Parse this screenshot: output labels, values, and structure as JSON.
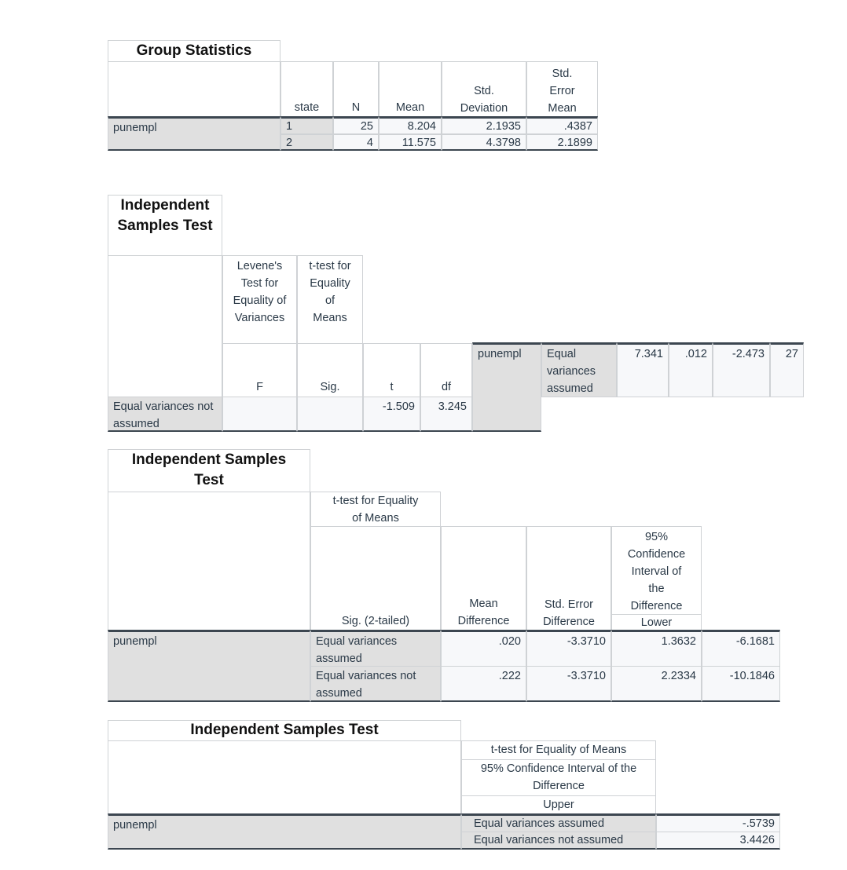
{
  "group_statistics": {
    "title": "Group Statistics",
    "headers": [
      "state",
      "N",
      "Mean",
      "Std. Deviation",
      "Std. Error Mean"
    ],
    "row_label": "punempl",
    "rows": [
      [
        "1",
        "25",
        "8.204",
        "2.1935",
        ".4387"
      ],
      [
        "2",
        "4",
        "11.575",
        "4.3798",
        "2.1899"
      ]
    ]
  },
  "indep_test_1": {
    "title": "Independent Samples Test",
    "levene_header": "Levene's Test for Equality of Variances",
    "ttest_header": "t-test for Equality of Means",
    "col_F": "F",
    "col_sig": "Sig.",
    "col_t": "t",
    "col_df": "df",
    "var_label": "punempl",
    "row_assumed": {
      "label": "Equal variances assumed",
      "F": "7.341",
      "sig": ".012",
      "t": "-2.473",
      "df": "27"
    },
    "row_not_assumed": {
      "label": "Equal variances not assumed",
      "t": "-1.509",
      "df": "3.245"
    }
  },
  "indep_test_2": {
    "title": "Independent Samples Test",
    "ttest_header": "t-test for Equality of Means",
    "col_sig2": "Sig. (2-tailed)",
    "col_mean_diff": "Mean Difference",
    "col_se_diff": "Std. Error Difference",
    "col_ci": "95% Confidence Interval of the Difference",
    "col_lower": "Lower",
    "var_label": "punempl",
    "rows": [
      {
        "label": "Equal variances assumed",
        "sig2": ".020",
        "mean_diff": "-3.3710",
        "se_diff": "1.3632",
        "lower": "-6.1681"
      },
      {
        "label": "Equal variances not assumed",
        "sig2": ".222",
        "mean_diff": "-3.3710",
        "se_diff": "2.2334",
        "lower": "-10.1846"
      }
    ]
  },
  "indep_test_3": {
    "title": "Independent Samples Test",
    "ttest_header": "t-test for Equality of Means",
    "ci_header": "95% Confidence Interval of the Difference",
    "col_upper": "Upper",
    "var_label": "punempl",
    "rows": [
      {
        "label": "Equal variances assumed",
        "upper": "-.5739"
      },
      {
        "label": "Equal variances not assumed",
        "upper": "3.4426"
      }
    ]
  }
}
